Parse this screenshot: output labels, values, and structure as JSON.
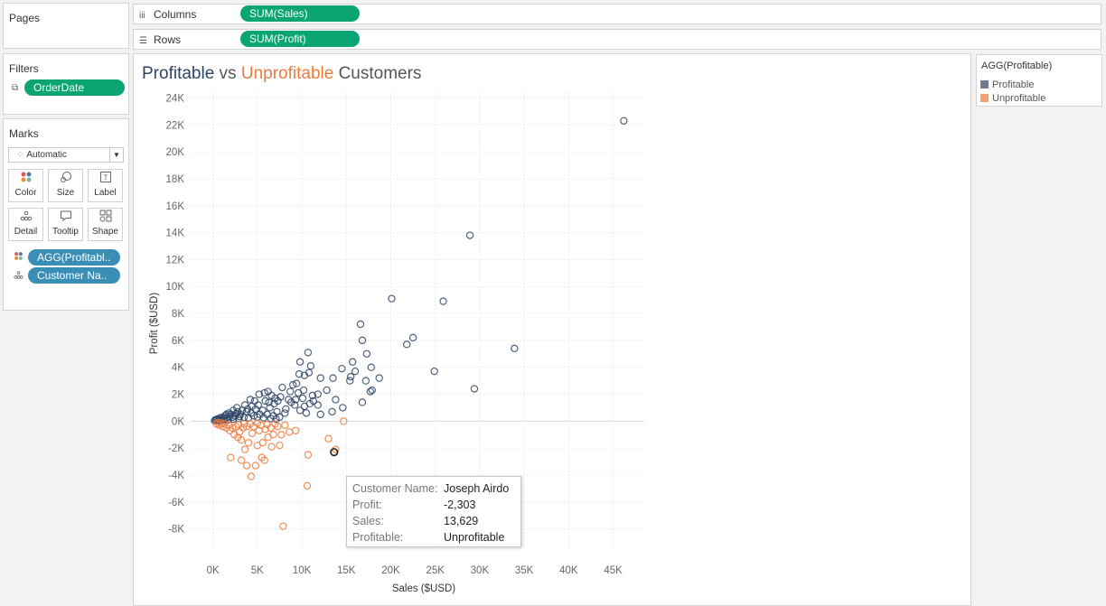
{
  "pages": {
    "title": "Pages"
  },
  "columns": {
    "label": "Columns",
    "icon": "columns-icon",
    "pill": "SUM(Sales)"
  },
  "rows": {
    "label": "Rows",
    "icon": "rows-icon",
    "pill": "SUM(Profit)"
  },
  "filters": {
    "title": "Filters",
    "pill": "OrderDate"
  },
  "marks": {
    "title": "Marks",
    "mark_type": "Automatic",
    "buttons": [
      {
        "label": "Color",
        "icon": "color-icon"
      },
      {
        "label": "Size",
        "icon": "size-icon"
      },
      {
        "label": "Label",
        "icon": "label-icon"
      },
      {
        "label": "Detail",
        "icon": "detail-icon"
      },
      {
        "label": "Tooltip",
        "icon": "tooltip-icon"
      },
      {
        "label": "Shape",
        "icon": "shape-icon"
      }
    ],
    "pills": [
      {
        "label": "AGG(Profitabl..",
        "icon": "color-icon"
      },
      {
        "label": "Customer Na..",
        "icon": "detail-icon"
      }
    ]
  },
  "view": {
    "title_part1": "Profitable",
    "title_part2": " vs ",
    "title_part3": "Unprofitable",
    "title_part4": " Customers"
  },
  "colors": {
    "profitable": "#2d4466",
    "unprofitable": "#ee7a3e",
    "pill_green": "#0aa572",
    "pill_blue": "#3a8eb5"
  },
  "legend": {
    "title": "AGG(Profitable)",
    "items": [
      {
        "label": "Profitable",
        "color": "#6e7b92"
      },
      {
        "label": "Unprofitable",
        "color": "#f2a071"
      }
    ]
  },
  "tooltip": {
    "rows": [
      {
        "key": "Customer Name:",
        "value": "Joseph Airdo"
      },
      {
        "key": "Profit:",
        "value": "-2,303"
      },
      {
        "key": "Sales:",
        "value": "13,629"
      },
      {
        "key": "Profitable:",
        "value": "Unprofitable"
      }
    ]
  },
  "chart_data": {
    "type": "scatter",
    "xlabel": "Sales ($USD)",
    "ylabel": "Profit ($USD)",
    "xlim": [
      -2500,
      48500
    ],
    "ylim": [
      -9500,
      24500
    ],
    "x_ticks": [
      "0K",
      "5K",
      "10K",
      "15K",
      "20K",
      "25K",
      "30K",
      "35K",
      "40K",
      "45K"
    ],
    "x_tick_values": [
      0,
      5000,
      10000,
      15000,
      20000,
      25000,
      30000,
      35000,
      40000,
      45000
    ],
    "y_ticks": [
      "24K",
      "22K",
      "20K",
      "18K",
      "16K",
      "14K",
      "12K",
      "10K",
      "8K",
      "6K",
      "4K",
      "2K",
      "0K",
      "-2K",
      "-4K",
      "-6K",
      "-8K"
    ],
    "y_tick_values": [
      24000,
      22000,
      20000,
      18000,
      16000,
      14000,
      12000,
      10000,
      8000,
      6000,
      4000,
      2000,
      0,
      -2000,
      -4000,
      -6000,
      -8000
    ],
    "grid": true,
    "marker": "open-circle",
    "highlighted": {
      "customer": "Joseph Airdo",
      "x": 13629,
      "y": -2303
    },
    "series": [
      {
        "name": "Profitable",
        "color": "#2d4466",
        "points": [
          [
            46200,
            22300
          ],
          [
            28900,
            13800
          ],
          [
            20100,
            9100
          ],
          [
            25900,
            8900
          ],
          [
            33900,
            5400
          ],
          [
            16600,
            7200
          ],
          [
            16800,
            6000
          ],
          [
            22500,
            6200
          ],
          [
            21800,
            5700
          ],
          [
            17300,
            5000
          ],
          [
            15700,
            4400
          ],
          [
            14500,
            3900
          ],
          [
            17800,
            4000
          ],
          [
            16000,
            3700
          ],
          [
            15500,
            3300
          ],
          [
            15400,
            3000
          ],
          [
            18700,
            3200
          ],
          [
            17200,
            3000
          ],
          [
            17900,
            2300
          ],
          [
            17700,
            2200
          ],
          [
            24900,
            3700
          ],
          [
            29400,
            2400
          ],
          [
            16800,
            1400
          ],
          [
            13800,
            1600
          ],
          [
            10700,
            5100
          ],
          [
            11000,
            4100
          ],
          [
            9800,
            4400
          ],
          [
            9700,
            3500
          ],
          [
            10300,
            3400
          ],
          [
            10800,
            3600
          ],
          [
            12100,
            3200
          ],
          [
            13500,
            3200
          ],
          [
            12800,
            2300
          ],
          [
            11800,
            2000
          ],
          [
            11200,
            1900
          ],
          [
            11800,
            1200
          ],
          [
            10900,
            1300
          ],
          [
            10300,
            1100
          ],
          [
            11300,
            1500
          ],
          [
            9400,
            2800
          ],
          [
            9000,
            2700
          ],
          [
            8700,
            2200
          ],
          [
            8500,
            1600
          ],
          [
            9600,
            2100
          ],
          [
            10200,
            2300
          ],
          [
            7800,
            2500
          ],
          [
            7600,
            1800
          ],
          [
            7300,
            1500
          ],
          [
            8200,
            900
          ],
          [
            9200,
            1200
          ],
          [
            9800,
            800
          ],
          [
            10500,
            600
          ],
          [
            12100,
            500
          ],
          [
            13400,
            700
          ],
          [
            14600,
            1000
          ],
          [
            6200,
            2200
          ],
          [
            6600,
            1900
          ],
          [
            5800,
            2100
          ],
          [
            5200,
            2000
          ],
          [
            6900,
            1300
          ],
          [
            5900,
            1500
          ],
          [
            4700,
            1500
          ],
          [
            4200,
            1600
          ],
          [
            4800,
            900
          ],
          [
            5600,
            800
          ],
          [
            6400,
            1000
          ],
          [
            7200,
            700
          ],
          [
            8100,
            600
          ],
          [
            3600,
            1200
          ],
          [
            3900,
            900
          ],
          [
            3300,
            800
          ],
          [
            2800,
            700
          ],
          [
            3100,
            500
          ],
          [
            2500,
            400
          ],
          [
            2200,
            300
          ],
          [
            1900,
            350
          ],
          [
            1600,
            250
          ],
          [
            1300,
            200
          ],
          [
            1000,
            150
          ],
          [
            700,
            100
          ],
          [
            400,
            80
          ],
          [
            200,
            40
          ],
          [
            4300,
            600
          ],
          [
            4600,
            400
          ],
          [
            5300,
            500
          ],
          [
            6100,
            500
          ],
          [
            6800,
            400
          ],
          [
            7500,
            300
          ],
          [
            3500,
            300
          ],
          [
            2900,
            200
          ],
          [
            2300,
            150
          ],
          [
            1700,
            100
          ],
          [
            1200,
            80
          ],
          [
            900,
            50
          ],
          [
            600,
            30
          ],
          [
            5000,
            300
          ],
          [
            5700,
            250
          ],
          [
            6500,
            200
          ],
          [
            7100,
            150
          ],
          [
            4000,
            250
          ],
          [
            3000,
            350
          ],
          [
            2600,
            550
          ],
          [
            2000,
            500
          ],
          [
            1400,
            400
          ],
          [
            3800,
            700
          ],
          [
            4400,
            1100
          ],
          [
            5100,
            1200
          ],
          [
            6300,
            1400
          ],
          [
            7000,
            1700
          ],
          [
            8800,
            1400
          ],
          [
            9300,
            1600
          ],
          [
            10100,
            1700
          ],
          [
            2700,
            1000
          ],
          [
            2300,
            800
          ],
          [
            1800,
            600
          ],
          [
            1500,
            500
          ],
          [
            1100,
            300
          ],
          [
            800,
            250
          ],
          [
            500,
            150
          ],
          [
            300,
            100
          ]
        ]
      },
      {
        "name": "Unprofitable",
        "color": "#ee7a3e",
        "points": [
          [
            13629,
            -2303
          ],
          [
            7900,
            -7800
          ],
          [
            10600,
            -4800
          ],
          [
            4300,
            -4100
          ],
          [
            3800,
            -3300
          ],
          [
            4800,
            -3300
          ],
          [
            5800,
            -2900
          ],
          [
            5500,
            -2700
          ],
          [
            3200,
            -2900
          ],
          [
            2000,
            -2700
          ],
          [
            10700,
            -2500
          ],
          [
            13000,
            -1300
          ],
          [
            13800,
            -2100
          ],
          [
            14700,
            0
          ],
          [
            6600,
            -1900
          ],
          [
            7500,
            -1800
          ],
          [
            7700,
            -1000
          ],
          [
            5000,
            -1800
          ],
          [
            5600,
            -1600
          ],
          [
            4000,
            -1600
          ],
          [
            3600,
            -2100
          ],
          [
            3200,
            -1400
          ],
          [
            6200,
            -1200
          ],
          [
            6800,
            -1000
          ],
          [
            8600,
            -800
          ],
          [
            9300,
            -700
          ],
          [
            2800,
            -1200
          ],
          [
            2400,
            -1000
          ],
          [
            3000,
            -800
          ],
          [
            4400,
            -900
          ],
          [
            5200,
            -700
          ],
          [
            5900,
            -600
          ],
          [
            6500,
            -500
          ],
          [
            7300,
            -400
          ],
          [
            8100,
            -300
          ],
          [
            1900,
            -700
          ],
          [
            1500,
            -500
          ],
          [
            1100,
            -400
          ],
          [
            700,
            -300
          ],
          [
            400,
            -200
          ],
          [
            2200,
            -500
          ],
          [
            2600,
            -400
          ],
          [
            3400,
            -500
          ],
          [
            3800,
            -400
          ],
          [
            4600,
            -400
          ],
          [
            5400,
            -300
          ],
          [
            6100,
            -250
          ],
          [
            7000,
            -200
          ],
          [
            1800,
            -300
          ],
          [
            1300,
            -200
          ],
          [
            900,
            -150
          ],
          [
            600,
            -100
          ],
          [
            2900,
            -250
          ],
          [
            3500,
            -200
          ],
          [
            4200,
            -200
          ],
          [
            5000,
            -150
          ]
        ]
      }
    ]
  }
}
